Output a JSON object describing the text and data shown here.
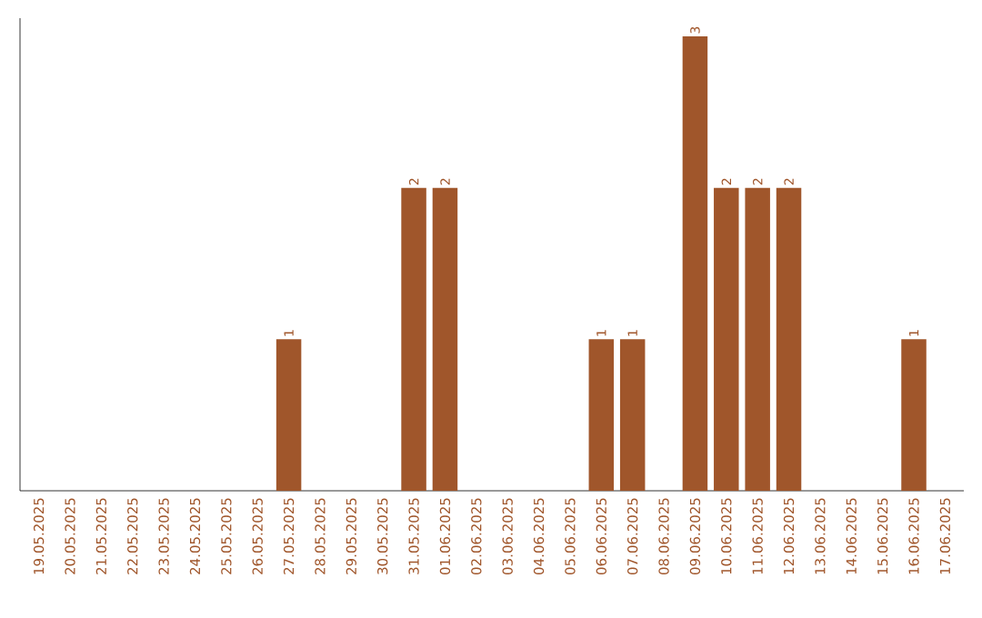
{
  "chart_data": {
    "type": "bar",
    "categories": [
      "19.05.2025",
      "20.05.2025",
      "21.05.2025",
      "22.05.2025",
      "23.05.2025",
      "24.05.2025",
      "25.05.2025",
      "26.05.2025",
      "27.05.2025",
      "28.05.2025",
      "29.05.2025",
      "30.05.2025",
      "31.05.2025",
      "01.06.2025",
      "02.06.2025",
      "03.06.2025",
      "04.06.2025",
      "05.06.2025",
      "06.06.2025",
      "07.06.2025",
      "08.06.2025",
      "09.06.2025",
      "10.06.2025",
      "11.06.2025",
      "12.06.2025",
      "13.06.2025",
      "14.06.2025",
      "15.06.2025",
      "16.06.2025",
      "17.06.2025"
    ],
    "values": [
      0,
      0,
      0,
      0,
      0,
      0,
      0,
      0,
      1,
      0,
      0,
      0,
      2,
      2,
      0,
      0,
      0,
      0,
      1,
      1,
      0,
      3,
      2,
      2,
      2,
      0,
      0,
      0,
      1,
      0
    ],
    "value_labels": [
      null,
      null,
      null,
      null,
      null,
      null,
      null,
      null,
      "1",
      null,
      null,
      null,
      "2",
      "2",
      null,
      null,
      null,
      null,
      "1",
      "1",
      null,
      "3",
      "2",
      "2",
      "2",
      null,
      null,
      null,
      "1",
      null
    ],
    "color": "#a0562b"
  }
}
